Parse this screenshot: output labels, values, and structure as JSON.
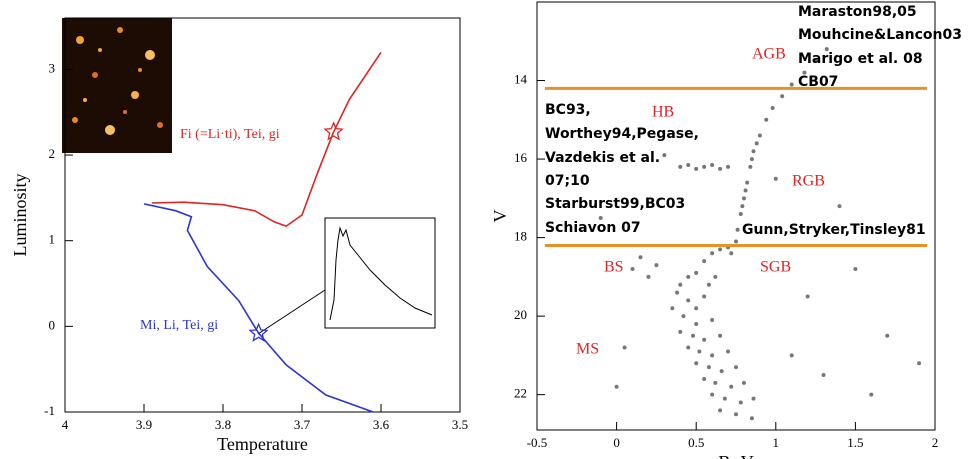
{
  "chart_data": [
    {
      "type": "line",
      "xlabel": "Temperature",
      "ylabel": "Luminosity",
      "xlim": [
        4,
        3.5
      ],
      "xticks": [
        4,
        3.9,
        3.8,
        3.7,
        3.6,
        3.5
      ],
      "ylim": [
        -1,
        3.6
      ],
      "yticks": [
        -1,
        0,
        1,
        2,
        3
      ],
      "series": [
        {
          "color": "#e02424",
          "x": [
            3.89,
            3.85,
            3.8,
            3.76,
            3.735,
            3.72,
            3.7,
            3.68,
            3.66,
            3.64,
            3.6
          ],
          "values": [
            1.44,
            1.45,
            1.42,
            1.35,
            1.22,
            1.17,
            1.3,
            1.8,
            2.27,
            2.65,
            3.2
          ]
        },
        {
          "color": "#2a35d8",
          "x": [
            3.9,
            3.86,
            3.84,
            3.845,
            3.82,
            3.78,
            3.755,
            3.72,
            3.67,
            3.61
          ],
          "values": [
            1.43,
            1.35,
            1.28,
            1.12,
            0.7,
            0.3,
            -0.08,
            -0.45,
            -0.8,
            -1
          ]
        }
      ],
      "markers": [
        {
          "x": 3.66,
          "y": 2.27,
          "color": "#e02424"
        },
        {
          "x": 3.755,
          "y": -0.08,
          "color": "#2a35d8"
        }
      ],
      "annotations": [
        {
          "text": "Fi (=Li·ti), Tei, gi",
          "color": "#e02424"
        },
        {
          "text": "Mi, Li, Tei, gi",
          "color": "#2a35d8"
        }
      ]
    },
    {
      "type": "scatter",
      "xlabel": "B−V",
      "ylabel": "V",
      "xlim": [
        -0.5,
        2
      ],
      "xticks": [
        -0.5,
        0,
        0.5,
        1,
        1.5,
        2
      ],
      "ylim": [
        22.9,
        12
      ],
      "yticks": [
        14,
        16,
        18,
        20,
        22
      ],
      "color": "#777777",
      "x": [
        0.45,
        0.5,
        0.55,
        0.42,
        0.5,
        0.6,
        0.48,
        0.55,
        0.65,
        0.52,
        0.6,
        0.7,
        0.58,
        0.66,
        0.75,
        0.62,
        0.72,
        0.8,
        0.68,
        0.78,
        0.86,
        0.75,
        0.85,
        0.4,
        0.45,
        0.5,
        0.38,
        0.35,
        0.4,
        0.45,
        0.5,
        0.55,
        0.6,
        0.65,
        0.58,
        0.62,
        0.55,
        0.6,
        0.65,
        0.7,
        0.75,
        0.72,
        0.76,
        0.78,
        0.8,
        0.82,
        0.84,
        0.86,
        0.9,
        0.94,
        0.98,
        1.04,
        1.1,
        1.18,
        1.25,
        1.32,
        0.79,
        0.81,
        0.85,
        0.88,
        0.4,
        0.45,
        0.5,
        0.55,
        0.6,
        0.65,
        0.7,
        0.3,
        0.1,
        0.2,
        0.15,
        0.25,
        -0.1,
        0.05,
        1.2,
        1.5,
        1.7,
        1.3,
        1.0,
        1.4,
        1.1,
        0.0,
        1.6,
        1.9
      ],
      "values": [
        19.6,
        19.8,
        19.5,
        20.0,
        20.2,
        20.1,
        20.5,
        20.6,
        20.5,
        20.9,
        21.0,
        20.9,
        21.3,
        21.4,
        21.3,
        21.7,
        21.8,
        21.7,
        22.1,
        22.2,
        22.1,
        22.5,
        22.6,
        19.2,
        19.0,
        18.9,
        19.4,
        19.8,
        20.4,
        20.8,
        21.2,
        21.6,
        22.0,
        22.4,
        19.2,
        19.0,
        18.6,
        18.4,
        18.3,
        18.25,
        18.1,
        18.4,
        17.8,
        17.4,
        17.0,
        16.6,
        16.2,
        15.8,
        15.4,
        15.0,
        14.7,
        14.4,
        14.1,
        13.8,
        13.5,
        13.2,
        17.2,
        16.8,
        16.0,
        15.6,
        16.2,
        16.15,
        16.25,
        16.2,
        16.15,
        16.25,
        16.2,
        15.9,
        18.8,
        19.0,
        18.5,
        18.7,
        17.5,
        20.8,
        19.5,
        18.8,
        20.5,
        21.5,
        16.5,
        17.2,
        21.0,
        21.8,
        22.0,
        21.2
      ],
      "hlines": [
        {
          "value": 14.2,
          "color": "#e8902a"
        },
        {
          "value": 18.2,
          "color": "#e8902a"
        }
      ],
      "regions": [
        "AGB",
        "HB",
        "RGB",
        "BS",
        "SGB",
        "MS"
      ],
      "region_color": "#e02424",
      "notes": [
        "Maraston98,05",
        "Mouhcine&Lancon03",
        "Marigo et al. 08",
        "CB07",
        "BC93,",
        "Worthey94,Pegase,",
        "Vazdekis et al.",
        "07;10",
        "Starburst99,BC03",
        "Schiavon 07",
        "Gunn,Stryker,Tinsley81"
      ]
    }
  ]
}
